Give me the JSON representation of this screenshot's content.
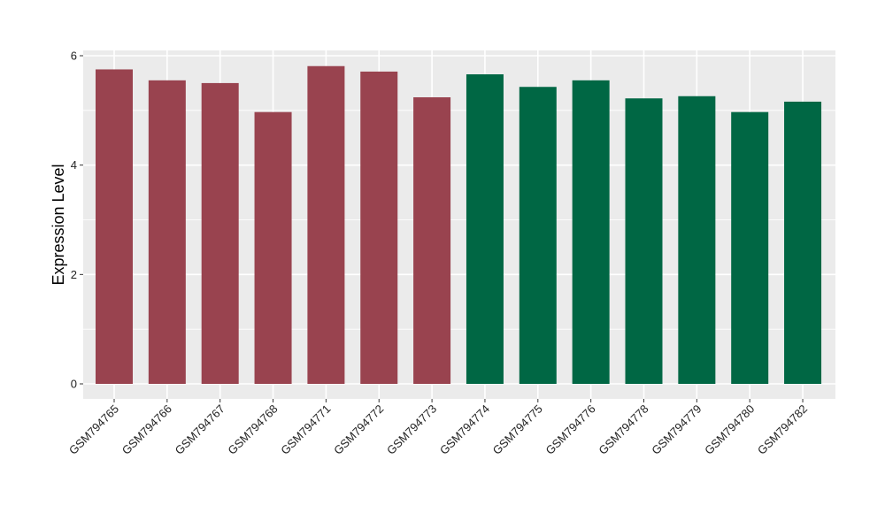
{
  "chart_data": {
    "type": "bar",
    "title": "",
    "xlabel": "",
    "ylabel": "Expression Level",
    "ylim": [
      0,
      6
    ],
    "yticks": [
      0,
      2,
      4,
      6
    ],
    "grid": true,
    "legend": "none",
    "categories": [
      "GSM794765",
      "GSM794766",
      "GSM794767",
      "GSM794768",
      "GSM794771",
      "GSM794772",
      "GSM794773",
      "GSM794774",
      "GSM794775",
      "GSM794776",
      "GSM794778",
      "GSM794779",
      "GSM794780",
      "GSM794782"
    ],
    "values": [
      5.75,
      5.55,
      5.5,
      4.97,
      5.81,
      5.71,
      5.24,
      5.66,
      5.43,
      5.55,
      5.22,
      5.26,
      4.97,
      5.16
    ],
    "colors": [
      "#99434f",
      "#99434f",
      "#99434f",
      "#99434f",
      "#99434f",
      "#99434f",
      "#99434f",
      "#006744",
      "#006744",
      "#006744",
      "#006744",
      "#006744",
      "#006744",
      "#006744"
    ],
    "panel_background": "#ebebeb",
    "gridline_color": "#ffffff"
  }
}
